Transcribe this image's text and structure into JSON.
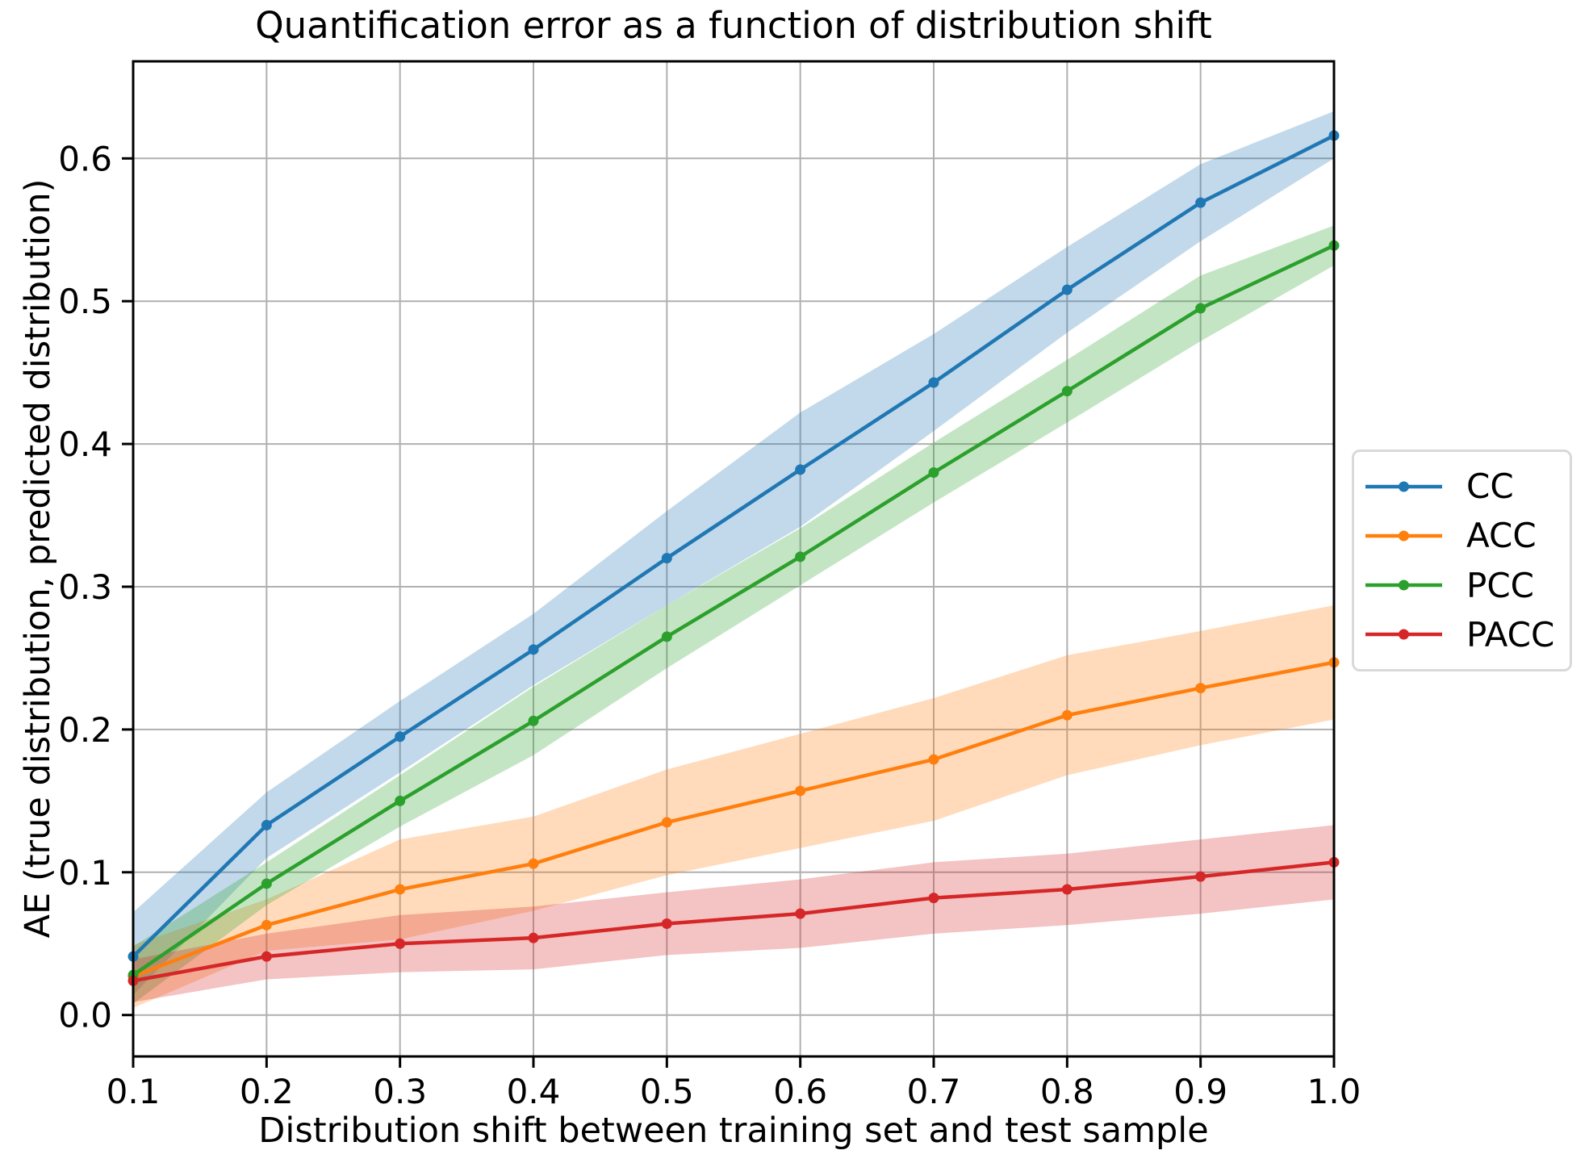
{
  "chart_data": {
    "type": "line",
    "title": "Quantification error as a function of distribution shift",
    "xlabel": "Distribution shift between training set and test sample",
    "ylabel": "AE (true distribution, predicted distribution)",
    "x": [
      0.1,
      0.2,
      0.3,
      0.4,
      0.5,
      0.6,
      0.7,
      0.8,
      0.9,
      1.0
    ],
    "xticks": [
      "0.1",
      "0.2",
      "0.3",
      "0.4",
      "0.5",
      "0.6",
      "0.7",
      "0.8",
      "0.9",
      "1.0"
    ],
    "yticks": [
      "0.0",
      "0.1",
      "0.2",
      "0.3",
      "0.4",
      "0.5",
      "0.6"
    ],
    "xlim": [
      0.1,
      1.0
    ],
    "ylim": [
      -0.029,
      0.668
    ],
    "grid": true,
    "grid_color": "#b0b0b0",
    "spine_color": "#000000",
    "band_opacity": 0.28,
    "legend_position": "right-outside",
    "series": [
      {
        "name": "CC",
        "color": "#1f77b4",
        "values": [
          0.041,
          0.133,
          0.195,
          0.256,
          0.32,
          0.382,
          0.443,
          0.508,
          0.569,
          0.616
        ],
        "band_upper": [
          0.072,
          0.156,
          0.22,
          0.281,
          0.353,
          0.422,
          0.477,
          0.538,
          0.596,
          0.633
        ],
        "band_lower": [
          0.014,
          0.11,
          0.17,
          0.231,
          0.287,
          0.342,
          0.409,
          0.478,
          0.542,
          0.6
        ]
      },
      {
        "name": "ACC",
        "color": "#ff7f0e",
        "values": [
          0.027,
          0.063,
          0.088,
          0.106,
          0.135,
          0.157,
          0.179,
          0.21,
          0.229,
          0.247
        ],
        "band_upper": [
          0.049,
          0.081,
          0.123,
          0.139,
          0.172,
          0.197,
          0.222,
          0.252,
          0.269,
          0.287
        ],
        "band_lower": [
          0.005,
          0.045,
          0.053,
          0.073,
          0.098,
          0.117,
          0.136,
          0.168,
          0.189,
          0.207
        ]
      },
      {
        "name": "PCC",
        "color": "#2ca02c",
        "values": [
          0.028,
          0.092,
          0.15,
          0.206,
          0.265,
          0.321,
          0.38,
          0.437,
          0.495,
          0.539
        ],
        "band_upper": [
          0.048,
          0.107,
          0.168,
          0.23,
          0.287,
          0.341,
          0.401,
          0.459,
          0.518,
          0.553
        ],
        "band_lower": [
          0.008,
          0.077,
          0.132,
          0.182,
          0.243,
          0.301,
          0.359,
          0.415,
          0.472,
          0.525
        ]
      },
      {
        "name": "PACC",
        "color": "#d62728",
        "values": [
          0.024,
          0.041,
          0.05,
          0.054,
          0.064,
          0.071,
          0.082,
          0.088,
          0.097,
          0.107
        ],
        "band_upper": [
          0.039,
          0.057,
          0.07,
          0.076,
          0.086,
          0.095,
          0.107,
          0.113,
          0.123,
          0.133
        ],
        "band_lower": [
          0.009,
          0.025,
          0.03,
          0.032,
          0.042,
          0.047,
          0.057,
          0.063,
          0.071,
          0.081
        ]
      }
    ]
  }
}
